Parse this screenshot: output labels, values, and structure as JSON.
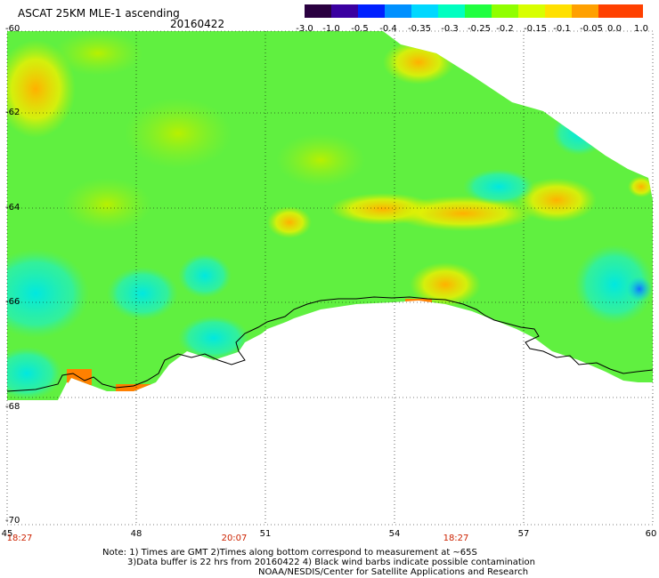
{
  "header": {
    "title": "ASCAT 25KM MLE-1 ascending",
    "date": "20160422"
  },
  "colorbar": {
    "tick_labels": [
      "-3.0",
      "-1.0",
      "-0.5",
      "-0.4",
      "-0.35",
      "-0.3",
      "-0.25",
      "-0.2",
      "-0.15",
      "-0.1",
      "-0.05",
      "0.0",
      "1.0"
    ],
    "colors": [
      "#2a0040",
      "#3a00a0",
      "#0020ff",
      "#0090ff",
      "#00d8ff",
      "#00ffc0",
      "#20ff40",
      "#90ff00",
      "#d8ff00",
      "#ffe000",
      "#ffa000",
      "#ff4000"
    ]
  },
  "map": {
    "lat_labels": [
      "-60",
      "-62",
      "-64",
      "-66",
      "-68",
      "-70"
    ],
    "lon_labels": [
      "45",
      "48",
      "51",
      "54",
      "57",
      "60"
    ],
    "time_labels": [
      "18:27",
      "20:07",
      "18:27"
    ],
    "coastline_color": "#000000",
    "land_color": "#ffffff",
    "dominant_color": "#60f040"
  },
  "notes": {
    "line1": "Note: 1) Times are GMT 2)Times along bottom correspond to measurement at ~65S",
    "line2": "3)Data buffer is 22 hrs from 20160422 4) Black wind barbs indicate possible contamination",
    "line3": "NOAA/NESDIS/Center for Satellite Applications and Research"
  }
}
